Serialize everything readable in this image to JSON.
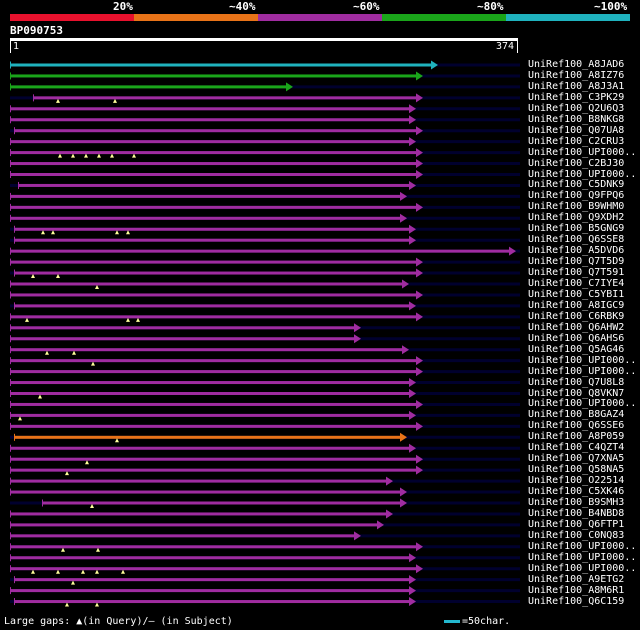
{
  "legend": {
    "labels": [
      "20%",
      "~40%",
      "~60%",
      "~80%",
      "~100%"
    ],
    "segments": [
      {
        "name": "<20%",
        "color": "#e8112d"
      },
      {
        "name": "20-40%",
        "color": "#e87318"
      },
      {
        "name": "40-60%",
        "color": "#a02ca0"
      },
      {
        "name": "60-80%",
        "color": "#1aa51a"
      },
      {
        "name": "80-100%",
        "color": "#1fb2be"
      }
    ]
  },
  "query": {
    "id": "BP090753",
    "length": 374,
    "start_label": "1",
    "end_label": "374"
  },
  "colors": {
    "hit_line": "#00002e",
    "gap_marker": "#ffff99"
  },
  "hits": [
    {
      "label": "UniRef100_A8JAD6",
      "cls": 4,
      "start": 0,
      "end": 427,
      "gaps": []
    },
    {
      "label": "UniRef100_A8IZ76",
      "cls": 3,
      "start": 0,
      "end": 412,
      "gaps": []
    },
    {
      "label": "UniRef100_A8J3A1",
      "cls": 3,
      "start": 0,
      "end": 282,
      "gaps": []
    },
    {
      "label": "UniRef100_C3PK29",
      "cls": 2,
      "start": 23,
      "end": 412,
      "gaps": [
        48,
        105
      ]
    },
    {
      "label": "UniRef100_Q2U6Q3",
      "cls": 2,
      "start": 0,
      "end": 405,
      "gaps": []
    },
    {
      "label": "UniRef100_B8NKG8",
      "cls": 2,
      "start": 0,
      "end": 405,
      "gaps": []
    },
    {
      "label": "UniRef100_Q07UA8",
      "cls": 2,
      "start": 4,
      "end": 412,
      "gaps": []
    },
    {
      "label": "UniRef100_C2CRU3",
      "cls": 2,
      "start": 0,
      "end": 405,
      "gaps": []
    },
    {
      "label": "UniRef100_UPI000..a",
      "display": "UniRef100_UPI000..",
      "cls": 2,
      "start": 0,
      "end": 412,
      "gaps": [
        50,
        63,
        76,
        89,
        102,
        124
      ]
    },
    {
      "label": "UniRef100_C2BJ30",
      "cls": 2,
      "start": 0,
      "end": 412,
      "gaps": []
    },
    {
      "label": "UniRef100_UPI000..b",
      "display": "UniRef100_UPI000..",
      "cls": 2,
      "start": 0,
      "end": 412,
      "gaps": []
    },
    {
      "label": "UniRef100_C5DNK9",
      "cls": 2,
      "start": 8,
      "end": 405,
      "gaps": []
    },
    {
      "label": "UniRef100_Q9FPQ6",
      "cls": 2,
      "start": 0,
      "end": 396,
      "gaps": []
    },
    {
      "label": "UniRef100_B9WHM0",
      "cls": 2,
      "start": 0,
      "end": 412,
      "gaps": []
    },
    {
      "label": "UniRef100_Q9XDH2",
      "cls": 2,
      "start": 0,
      "end": 396,
      "gaps": []
    },
    {
      "label": "UniRef100_B5GNG9",
      "cls": 2,
      "start": 4,
      "end": 405,
      "gaps": [
        33,
        43,
        107,
        118
      ]
    },
    {
      "label": "UniRef100_Q6SSE8",
      "cls": 2,
      "start": 4,
      "end": 405,
      "gaps": []
    },
    {
      "label": "UniRef100_A5DVD6",
      "cls": 2,
      "start": 0,
      "end": 505,
      "gaps": []
    },
    {
      "label": "UniRef100_Q7T5D9",
      "cls": 2,
      "start": 0,
      "end": 412,
      "gaps": []
    },
    {
      "label": "UniRef100_Q7T591",
      "cls": 2,
      "start": 4,
      "end": 412,
      "gaps": [
        23,
        48
      ]
    },
    {
      "label": "UniRef100_C7IYE4",
      "cls": 2,
      "start": 0,
      "end": 398,
      "gaps": [
        87
      ]
    },
    {
      "label": "UniRef100_C5YBI1",
      "cls": 2,
      "start": 0,
      "end": 412,
      "gaps": []
    },
    {
      "label": "UniRef100_A8IGC9",
      "cls": 2,
      "start": 4,
      "end": 405,
      "gaps": []
    },
    {
      "label": "UniRef100_C6RBK9",
      "cls": 2,
      "start": 0,
      "end": 412,
      "gaps": [
        17,
        118,
        128
      ]
    },
    {
      "label": "UniRef100_Q6AHW2",
      "cls": 2,
      "start": 0,
      "end": 350,
      "gaps": []
    },
    {
      "label": "UniRef100_Q6AHS6",
      "cls": 2,
      "start": 0,
      "end": 350,
      "gaps": []
    },
    {
      "label": "UniRef100_Q5AG46",
      "cls": 2,
      "start": 0,
      "end": 398,
      "gaps": [
        37,
        64
      ]
    },
    {
      "label": "UniRef100_UPI000..c",
      "display": "UniRef100_UPI000..",
      "cls": 2,
      "start": 0,
      "end": 412,
      "gaps": [
        83
      ]
    },
    {
      "label": "UniRef100_UPI000..d",
      "display": "UniRef100_UPI000..",
      "cls": 2,
      "start": 0,
      "end": 412,
      "gaps": []
    },
    {
      "label": "UniRef100_Q7U8L8",
      "cls": 2,
      "start": 0,
      "end": 405,
      "gaps": []
    },
    {
      "label": "UniRef100_Q8VKN7",
      "cls": 2,
      "start": 0,
      "end": 405,
      "gaps": [
        30
      ]
    },
    {
      "label": "UniRef100_UPI000..e",
      "display": "UniRef100_UPI000..",
      "cls": 2,
      "start": 0,
      "end": 412,
      "gaps": []
    },
    {
      "label": "UniRef100_B8GAZ4",
      "cls": 2,
      "start": 0,
      "end": 405,
      "gaps": [
        10
      ]
    },
    {
      "label": "UniRef100_Q6SSE6",
      "cls": 2,
      "start": 0,
      "end": 412,
      "gaps": []
    },
    {
      "label": "UniRef100_A8P059",
      "cls": 1,
      "start": 4,
      "end": 396,
      "gaps": [
        107
      ]
    },
    {
      "label": "UniRef100_C4QZT4",
      "cls": 2,
      "start": 0,
      "end": 405,
      "gaps": []
    },
    {
      "label": "UniRef100_Q7XNA5",
      "cls": 2,
      "start": 0,
      "end": 412,
      "gaps": [
        77
      ]
    },
    {
      "label": "UniRef100_Q58NA5",
      "cls": 2,
      "start": 0,
      "end": 412,
      "gaps": [
        57
      ]
    },
    {
      "label": "UniRef100_O22514",
      "cls": 2,
      "start": 0,
      "end": 382,
      "gaps": []
    },
    {
      "label": "UniRef100_C5XK46",
      "cls": 2,
      "start": 0,
      "end": 396,
      "gaps": []
    },
    {
      "label": "UniRef100_B9SMH3",
      "cls": 2,
      "start": 32,
      "end": 396,
      "gaps": [
        82
      ]
    },
    {
      "label": "UniRef100_B4NBD8",
      "cls": 2,
      "start": 0,
      "end": 382,
      "gaps": []
    },
    {
      "label": "UniRef100_Q6FTP1",
      "cls": 2,
      "start": 0,
      "end": 373,
      "gaps": []
    },
    {
      "label": "UniRef100_C0NQ83",
      "cls": 2,
      "start": 0,
      "end": 350,
      "gaps": []
    },
    {
      "label": "UniRef100_UPI000..f",
      "display": "UniRef100_UPI000..",
      "cls": 2,
      "start": 0,
      "end": 412,
      "gaps": [
        53,
        88
      ]
    },
    {
      "label": "UniRef100_UPI000..g",
      "display": "UniRef100_UPI000..",
      "cls": 2,
      "start": 0,
      "end": 405,
      "gaps": []
    },
    {
      "label": "UniRef100_UPI000..h",
      "display": "UniRef100_UPI000..",
      "cls": 2,
      "start": 0,
      "end": 412,
      "gaps": [
        23,
        48,
        73,
        87,
        113
      ]
    },
    {
      "label": "UniRef100_A9ETG2",
      "cls": 2,
      "start": 4,
      "end": 405,
      "gaps": [
        63
      ]
    },
    {
      "label": "UniRef100_A8M6R1",
      "cls": 2,
      "start": 0,
      "end": 405,
      "gaps": []
    },
    {
      "label": "UniRef100_Q6C159",
      "cls": 2,
      "start": 4,
      "end": 405,
      "gaps": [
        57,
        87
      ]
    }
  ],
  "footer": {
    "gap_text": "Large gaps: ▲(in Query)/— (in Subject)",
    "scale_text": "=50char."
  }
}
